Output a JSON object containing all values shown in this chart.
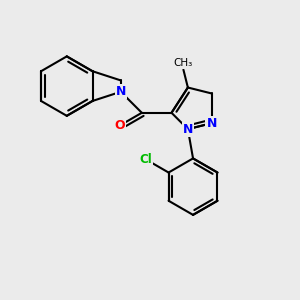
{
  "background_color": "#ebebeb",
  "bond_color": "#000000",
  "bond_width": 1.5,
  "atom_colors": {
    "N": "#0000ff",
    "O": "#ff0000",
    "Cl": "#00bb00",
    "C": "#000000"
  },
  "font_size_atom": 9,
  "font_size_methyl": 8
}
